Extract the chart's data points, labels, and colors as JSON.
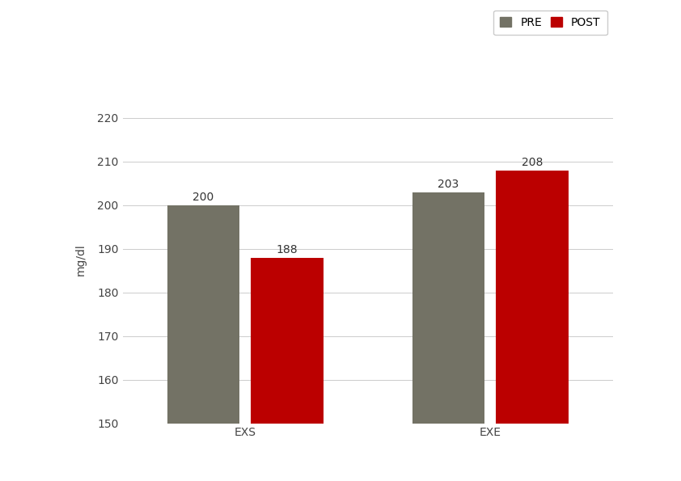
{
  "categories": [
    "EXS",
    "EXE"
  ],
  "pre_values": [
    200,
    203
  ],
  "post_values": [
    188,
    208
  ],
  "pre_color": "#737265",
  "post_color": "#bb0000",
  "ylabel": "mg/dl",
  "ylim": [
    150,
    225
  ],
  "yticks": [
    150,
    160,
    170,
    180,
    190,
    200,
    210,
    220
  ],
  "bar_width": 0.13,
  "legend_labels": [
    "PRE",
    "POST"
  ],
  "background_color": "#ffffff",
  "plot_bg_color": "#ffffff",
  "grid_color": "#cccccc",
  "label_fontsize": 10,
  "tick_fontsize": 10,
  "value_fontsize": 10,
  "legend_fontsize": 10,
  "group_centers": [
    0.28,
    0.72
  ]
}
